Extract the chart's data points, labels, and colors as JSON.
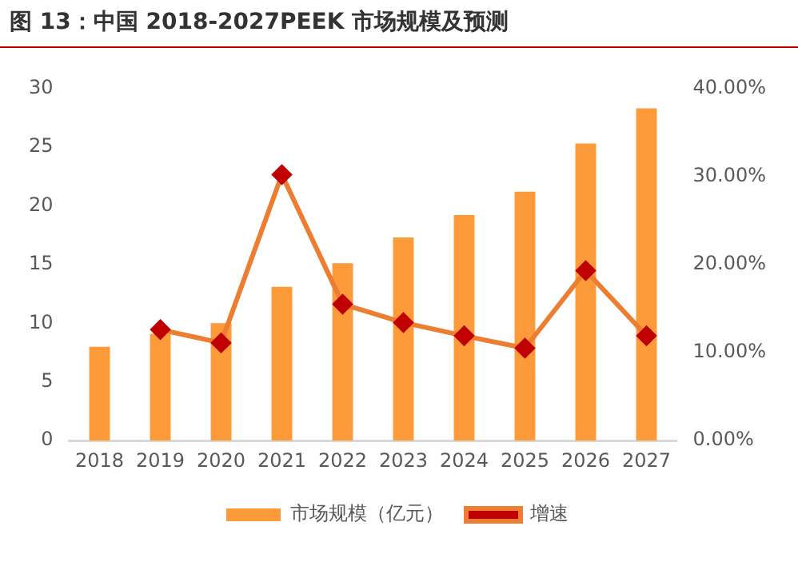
{
  "chart_data": {
    "type": "bar",
    "title": "图 13：中国 2018-2027PEEK 市场规模及预测",
    "categories": [
      "2018",
      "2019",
      "2020",
      "2021",
      "2022",
      "2023",
      "2024",
      "2025",
      "2026",
      "2027"
    ],
    "series": [
      {
        "name": "市场规模（亿元）",
        "color": "#fd9a3a",
        "values": [
          8.0,
          9.1,
          10.0,
          13.1,
          15.1,
          17.3,
          19.2,
          21.2,
          25.3,
          28.3
        ]
      },
      {
        "name": "增速",
        "type": "line",
        "axis": "y2",
        "color": "#ed7d31",
        "values": [
          null,
          12.6,
          11.1,
          30.2,
          15.5,
          13.4,
          11.9,
          10.5,
          19.3,
          11.9
        ]
      }
    ],
    "ylim": [
      0,
      30
    ],
    "yticks": [
      0,
      5,
      10,
      15,
      20,
      25,
      30
    ],
    "y2lim": [
      0,
      40
    ],
    "y2ticks": [
      {
        "value": 0,
        "label": "0.00%"
      },
      {
        "value": 10,
        "label": "10.00%"
      },
      {
        "value": 20,
        "label": "20.00%"
      },
      {
        "value": 30,
        "label": "30.00%"
      },
      {
        "value": 40,
        "label": "40.00%"
      }
    ],
    "grid": false,
    "legend": "bottom",
    "marker": "diamond",
    "line_style": "solid"
  }
}
